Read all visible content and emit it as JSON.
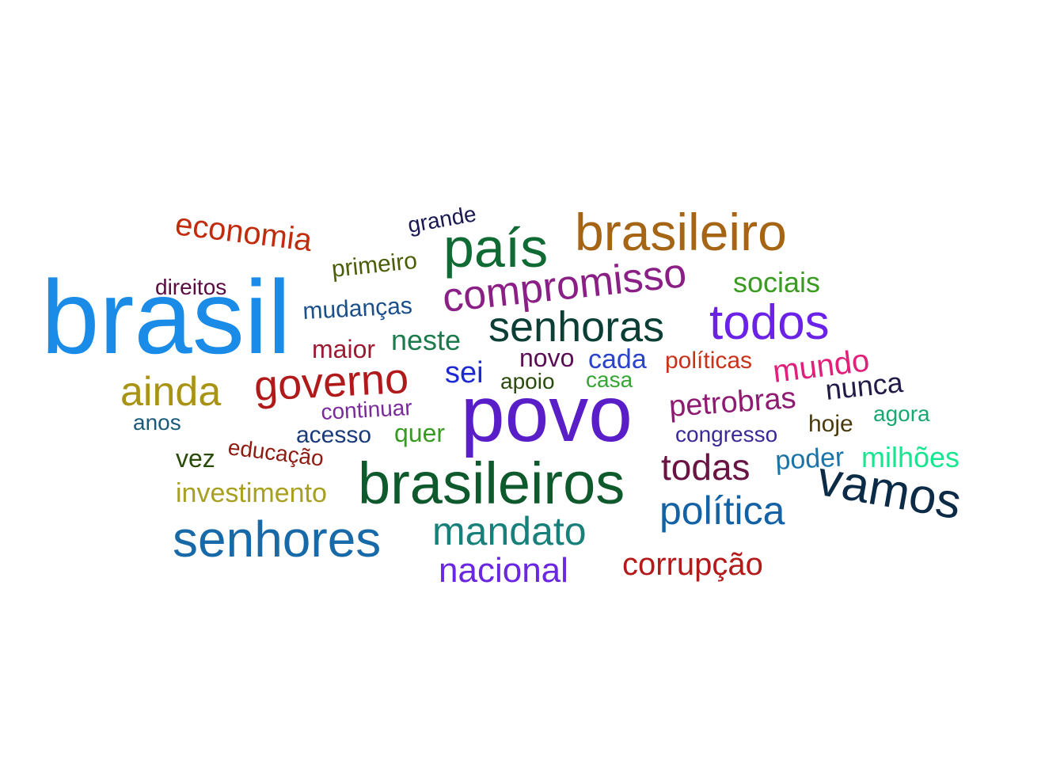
{
  "words": [
    {
      "text": "brasil",
      "color": "#1a8ce8"
    },
    {
      "text": "povo",
      "color": "#5a1ec8"
    },
    {
      "text": "brasileiros",
      "color": "#0e5a2c"
    },
    {
      "text": "país",
      "color": "#0f6a33"
    },
    {
      "text": "brasileiro",
      "color": "#a66415"
    },
    {
      "text": "senhores",
      "color": "#1769a8"
    },
    {
      "text": "vamos",
      "color": "#0c2b46"
    },
    {
      "text": "todos",
      "color": "#6a22e6"
    },
    {
      "text": "compromisso",
      "color": "#8a1f86"
    },
    {
      "text": "senhoras",
      "color": "#0b3f36"
    },
    {
      "text": "governo",
      "color": "#b01a1a"
    },
    {
      "text": "ainda",
      "color": "#a89314"
    },
    {
      "text": "mandato",
      "color": "#18807a"
    },
    {
      "text": "política",
      "color": "#1462a6"
    },
    {
      "text": "nacional",
      "color": "#6a26e0"
    },
    {
      "text": "todas",
      "color": "#6a1444"
    },
    {
      "text": "corrupção",
      "color": "#b41a1a"
    },
    {
      "text": "economia",
      "color": "#c22c0e"
    },
    {
      "text": "mundo",
      "color": "#e0207a"
    },
    {
      "text": "petrobras",
      "color": "#8e1b72"
    },
    {
      "text": "nunca",
      "color": "#241a48"
    },
    {
      "text": "milhões",
      "color": "#16e690"
    },
    {
      "text": "sociais",
      "color": "#3a9a22"
    },
    {
      "text": "neste",
      "color": "#1d7a4c"
    },
    {
      "text": "sei",
      "color": "#1d2ad0"
    },
    {
      "text": "grande",
      "color": "#1a1852"
    },
    {
      "text": "primeiro",
      "color": "#4a5e08"
    },
    {
      "text": "mudanças",
      "color": "#1a4f8c"
    },
    {
      "text": "direitos",
      "color": "#5a0c40"
    },
    {
      "text": "maior",
      "color": "#9c1a32"
    },
    {
      "text": "novo",
      "color": "#5c0e54"
    },
    {
      "text": "cada",
      "color": "#2a42cc"
    },
    {
      "text": "políticas",
      "color": "#c8321a"
    },
    {
      "text": "apoio",
      "color": "#2a4a0e"
    },
    {
      "text": "casa",
      "color": "#36a632"
    },
    {
      "text": "continuar",
      "color": "#7a2a9c"
    },
    {
      "text": "anos",
      "color": "#1a5a7a"
    },
    {
      "text": "acesso",
      "color": "#1a3a7a"
    },
    {
      "text": "quer",
      "color": "#389a22"
    },
    {
      "text": "congresso",
      "color": "#3a2a98"
    },
    {
      "text": "hoje",
      "color": "#4a3a0c"
    },
    {
      "text": "agora",
      "color": "#1aa872"
    },
    {
      "text": "poder",
      "color": "#1a74a8"
    },
    {
      "text": "vez",
      "color": "#2a4a0a"
    },
    {
      "text": "educação",
      "color": "#8e1a10"
    },
    {
      "text": "investimento",
      "color": "#a8a020"
    }
  ]
}
